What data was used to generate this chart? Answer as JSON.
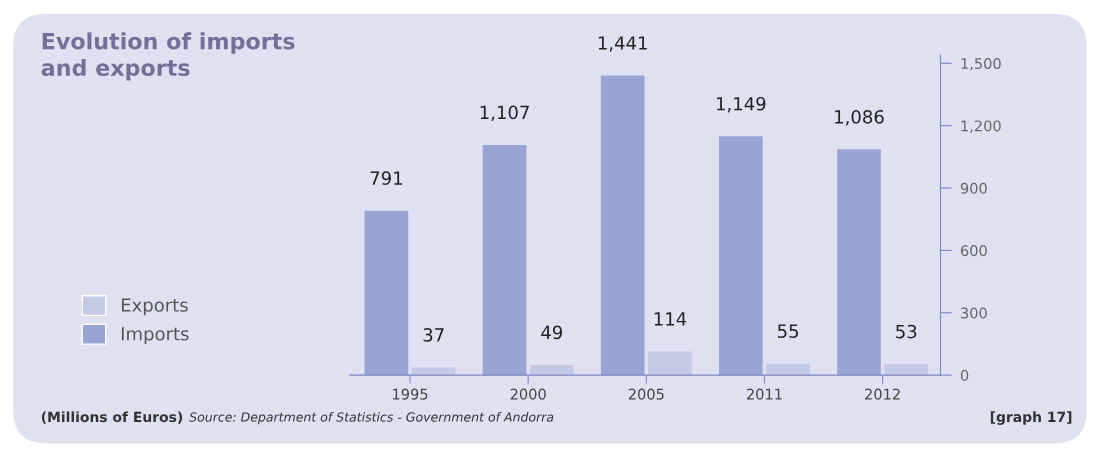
{
  "chart_data": {
    "type": "bar",
    "title": "Evolution of imports\nand exports",
    "categories": [
      "1995",
      "2000",
      "2005",
      "2011",
      "2012"
    ],
    "series": [
      {
        "name": "Imports",
        "color": "#98a4d4",
        "values": [
          791,
          1107,
          1441,
          1149,
          1086
        ],
        "value_labels": [
          "791",
          "1,107",
          "1,441",
          "1,149",
          "1,086"
        ]
      },
      {
        "name": "Exports",
        "color": "#c4c9e6",
        "values": [
          37,
          49,
          114,
          55,
          53
        ],
        "value_labels": [
          "37",
          "49",
          "114",
          "55",
          "53"
        ]
      }
    ],
    "ylim": [
      0,
      1540
    ],
    "yticks": [
      0,
      {
        "value": 300,
        "label": "300"
      },
      {
        "value": 600,
        "label": "600"
      },
      {
        "value": 900,
        "label": "900"
      },
      {
        "value": 1200,
        "label": "1,200"
      },
      {
        "value": 1500,
        "label": "1,500"
      }
    ],
    "legend": "left",
    "annotations": [
      "(Millions of Euros)",
      "Source: Department of Statistics - Government of Andorra",
      "[graph 17]"
    ]
  }
}
